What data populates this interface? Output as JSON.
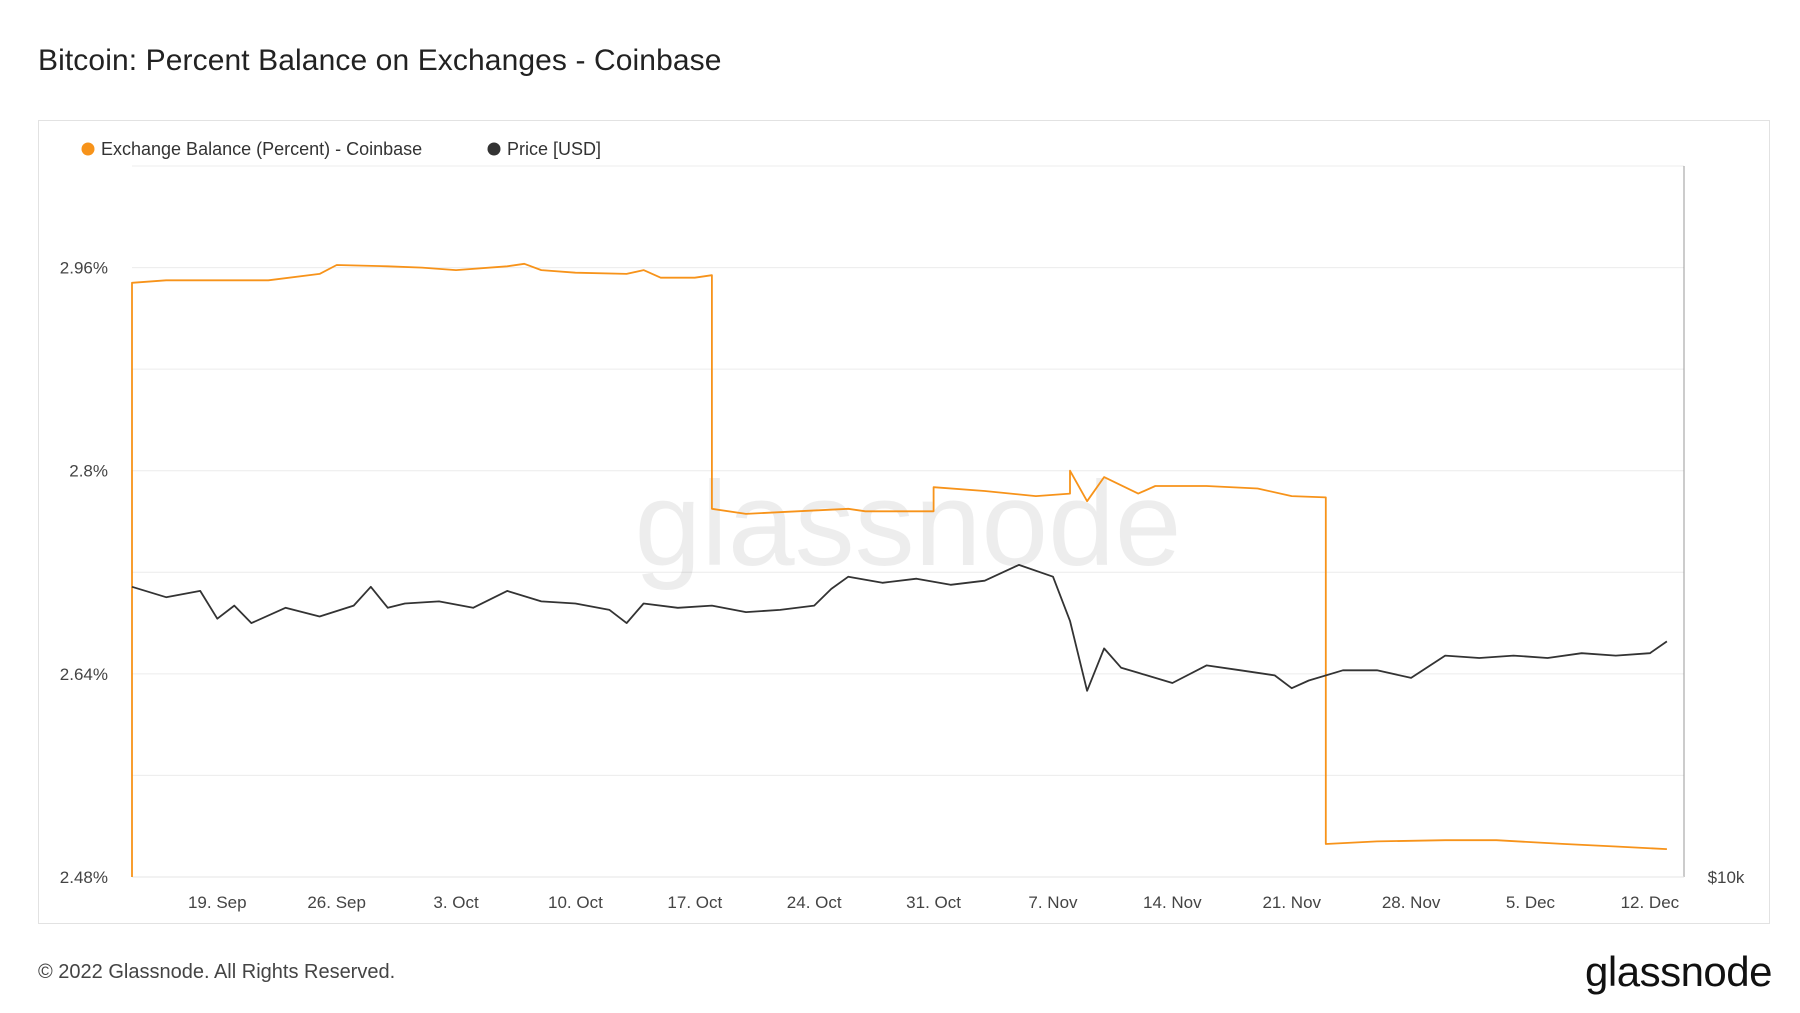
{
  "title": "Bitcoin: Percent Balance on Exchanges - Coinbase",
  "footer": {
    "copyright": "© 2022 Glassnode. All Rights Reserved.",
    "logo_text": "glassnode",
    "watermark_text": "glassnode"
  },
  "chart_data": {
    "type": "line",
    "title": "Bitcoin: Percent Balance on Exchanges - Coinbase",
    "x_type": "date",
    "x_range": [
      "2022-09-14",
      "2022-12-14"
    ],
    "x_ticks": [
      {
        "date": "2022-09-19",
        "label": "19. Sep"
      },
      {
        "date": "2022-09-26",
        "label": "26. Sep"
      },
      {
        "date": "2022-10-03",
        "label": "3. Oct"
      },
      {
        "date": "2022-10-10",
        "label": "10. Oct"
      },
      {
        "date": "2022-10-17",
        "label": "17. Oct"
      },
      {
        "date": "2022-10-24",
        "label": "24. Oct"
      },
      {
        "date": "2022-10-31",
        "label": "31. Oct"
      },
      {
        "date": "2022-11-07",
        "label": "7. Nov"
      },
      {
        "date": "2022-11-14",
        "label": "14. Nov"
      },
      {
        "date": "2022-11-21",
        "label": "21. Nov"
      },
      {
        "date": "2022-11-28",
        "label": "28. Nov"
      },
      {
        "date": "2022-12-05",
        "label": "5. Dec"
      },
      {
        "date": "2022-12-12",
        "label": "12. Dec"
      }
    ],
    "y_left": {
      "ticks": [
        2.48,
        2.64,
        2.8,
        2.96
      ],
      "tick_labels": [
        "2.48%",
        "2.64%",
        "2.8%",
        "2.96%"
      ],
      "range": [
        2.48,
        3.04
      ]
    },
    "y_right": {
      "tick_labels": [
        "$10k"
      ],
      "scale": "log",
      "range": [
        10000,
        56000
      ]
    },
    "grid": true,
    "legend_position": "top-left",
    "series": [
      {
        "name": "Exchange Balance (Percent) - Coinbase",
        "color": "#f7931a",
        "axis": "left",
        "points": [
          [
            "2022-09-14",
            2.48
          ],
          [
            "2022-09-14",
            2.948
          ],
          [
            "2022-09-16",
            2.95
          ],
          [
            "2022-09-19",
            2.95
          ],
          [
            "2022-09-22",
            2.95
          ],
          [
            "2022-09-25",
            2.955
          ],
          [
            "2022-09-26",
            2.962
          ],
          [
            "2022-09-29",
            2.961
          ],
          [
            "2022-10-01",
            2.96
          ],
          [
            "2022-10-03",
            2.958
          ],
          [
            "2022-10-06",
            2.961
          ],
          [
            "2022-10-07",
            2.963
          ],
          [
            "2022-10-08",
            2.958
          ],
          [
            "2022-10-10",
            2.956
          ],
          [
            "2022-10-13",
            2.955
          ],
          [
            "2022-10-14",
            2.958
          ],
          [
            "2022-10-15",
            2.952
          ],
          [
            "2022-10-17",
            2.952
          ],
          [
            "2022-10-18",
            2.954
          ],
          [
            "2022-10-18",
            2.77
          ],
          [
            "2022-10-20",
            2.766
          ],
          [
            "2022-10-23",
            2.768
          ],
          [
            "2022-10-26",
            2.77
          ],
          [
            "2022-10-27",
            2.768
          ],
          [
            "2022-10-30",
            2.768
          ],
          [
            "2022-10-31",
            2.768
          ],
          [
            "2022-10-31",
            2.787
          ],
          [
            "2022-11-03",
            2.784
          ],
          [
            "2022-11-06",
            2.78
          ],
          [
            "2022-11-08",
            2.782
          ],
          [
            "2022-11-08",
            2.8
          ],
          [
            "2022-11-09",
            2.776
          ],
          [
            "2022-11-10",
            2.795
          ],
          [
            "2022-11-12",
            2.782
          ],
          [
            "2022-11-13",
            2.788
          ],
          [
            "2022-11-16",
            2.788
          ],
          [
            "2022-11-19",
            2.786
          ],
          [
            "2022-11-21",
            2.78
          ],
          [
            "2022-11-23",
            2.779
          ],
          [
            "2022-11-23",
            2.506
          ],
          [
            "2022-11-26",
            2.508
          ],
          [
            "2022-11-30",
            2.509
          ],
          [
            "2022-12-03",
            2.509
          ],
          [
            "2022-12-07",
            2.506
          ],
          [
            "2022-12-10",
            2.504
          ],
          [
            "2022-12-13",
            2.502
          ]
        ]
      },
      {
        "name": "Price [USD]",
        "color": "#333333",
        "axis": "right",
        "points": [
          [
            "2022-09-14",
            20200
          ],
          [
            "2022-09-16",
            19700
          ],
          [
            "2022-09-18",
            20000
          ],
          [
            "2022-09-19",
            18700
          ],
          [
            "2022-09-20",
            19300
          ],
          [
            "2022-09-21",
            18500
          ],
          [
            "2022-09-23",
            19200
          ],
          [
            "2022-09-25",
            18800
          ],
          [
            "2022-09-27",
            19300
          ],
          [
            "2022-09-28",
            20200
          ],
          [
            "2022-09-29",
            19200
          ],
          [
            "2022-09-30",
            19400
          ],
          [
            "2022-10-02",
            19500
          ],
          [
            "2022-10-04",
            19200
          ],
          [
            "2022-10-06",
            20000
          ],
          [
            "2022-10-08",
            19500
          ],
          [
            "2022-10-10",
            19400
          ],
          [
            "2022-10-12",
            19100
          ],
          [
            "2022-10-13",
            18500
          ],
          [
            "2022-10-14",
            19400
          ],
          [
            "2022-10-16",
            19200
          ],
          [
            "2022-10-18",
            19300
          ],
          [
            "2022-10-20",
            19000
          ],
          [
            "2022-10-22",
            19100
          ],
          [
            "2022-10-24",
            19300
          ],
          [
            "2022-10-25",
            20100
          ],
          [
            "2022-10-26",
            20700
          ],
          [
            "2022-10-28",
            20400
          ],
          [
            "2022-10-30",
            20600
          ],
          [
            "2022-11-01",
            20300
          ],
          [
            "2022-11-03",
            20500
          ],
          [
            "2022-11-05",
            21300
          ],
          [
            "2022-11-07",
            20700
          ],
          [
            "2022-11-08",
            18600
          ],
          [
            "2022-11-09",
            15700
          ],
          [
            "2022-11-10",
            17400
          ],
          [
            "2022-11-11",
            16600
          ],
          [
            "2022-11-12",
            16400
          ],
          [
            "2022-11-14",
            16000
          ],
          [
            "2022-11-16",
            16700
          ],
          [
            "2022-11-18",
            16500
          ],
          [
            "2022-11-20",
            16300
          ],
          [
            "2022-11-21",
            15800
          ],
          [
            "2022-11-22",
            16100
          ],
          [
            "2022-11-24",
            16500
          ],
          [
            "2022-11-26",
            16500
          ],
          [
            "2022-11-28",
            16200
          ],
          [
            "2022-11-30",
            17100
          ],
          [
            "2022-12-02",
            17000
          ],
          [
            "2022-12-04",
            17100
          ],
          [
            "2022-12-06",
            17000
          ],
          [
            "2022-12-08",
            17200
          ],
          [
            "2022-12-10",
            17100
          ],
          [
            "2022-12-12",
            17200
          ],
          [
            "2022-12-13",
            17700
          ]
        ]
      }
    ]
  }
}
